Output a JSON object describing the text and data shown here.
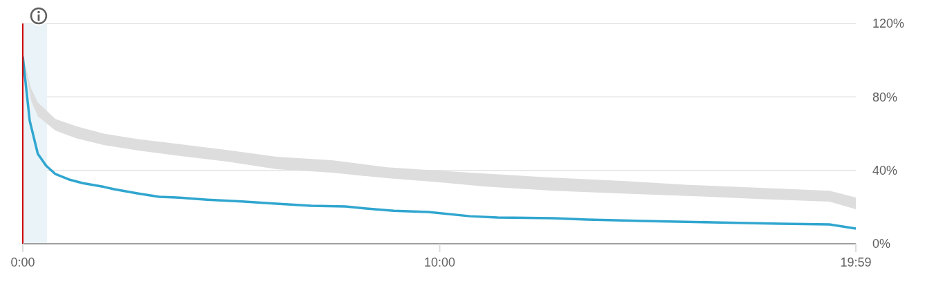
{
  "chart_data": {
    "type": "line",
    "xlim": [
      0,
      19.983
    ],
    "xticks": [
      {
        "value": 0,
        "label": "0:00"
      },
      {
        "value": 10,
        "label": "10:00"
      },
      {
        "value": 19.983,
        "label": "19:59"
      }
    ],
    "ylim": [
      0,
      120
    ],
    "yticks": [
      {
        "value": 0,
        "label": "0%"
      },
      {
        "value": 40,
        "label": "40%"
      },
      {
        "value": 80,
        "label": "80%"
      },
      {
        "value": 120,
        "label": "120%"
      }
    ],
    "grid": "y",
    "series": [
      {
        "type": "area",
        "color": "#dddddd",
        "x": [
          0,
          0.2,
          0.36,
          0.78,
          1.28,
          1.94,
          2.77,
          3.93,
          4.93,
          6.09,
          7.41,
          8.74,
          10,
          11.06,
          12.72,
          14.38,
          16.04,
          17.69,
          19.35,
          19.983
        ],
        "values": [
          null,
          null,
          null,
          null,
          null,
          null,
          null,
          null,
          null,
          null,
          null,
          null,
          null,
          null,
          null,
          null,
          null,
          null,
          null,
          null
        ],
        "lower": [
          102,
          78,
          69.5,
          61.7,
          57.5,
          53.8,
          50.8,
          47.4,
          44.7,
          40.6,
          38.7,
          35.7,
          33.5,
          31.2,
          28.9,
          27.4,
          26,
          24.4,
          22.9,
          18.8
        ],
        "upper": [
          102,
          84.6,
          77,
          68,
          64,
          60,
          57,
          53.8,
          51,
          47.4,
          45.5,
          41.7,
          39.8,
          38.3,
          36,
          34.2,
          32,
          30.5,
          28.9,
          25.2
        ]
      },
      {
        "color": "#30a6cf",
        "x": [
          0,
          0.166,
          0.36,
          0.56,
          0.78,
          1.11,
          1.44,
          1.94,
          2.19,
          2.77,
          3.27,
          3.76,
          4.43,
          5.26,
          6.09,
          6.92,
          7.74,
          8.24,
          8.9,
          9.73,
          10.73,
          11.39,
          12.72,
          13.55,
          14.88,
          16.53,
          18.19,
          19.35,
          19.983
        ],
        "values": [
          102,
          67,
          49,
          42.5,
          38,
          35,
          33,
          31,
          29.7,
          27.4,
          25.6,
          25.1,
          24,
          23,
          21.8,
          20.7,
          20.3,
          19.2,
          18,
          17.3,
          15,
          14.3,
          13.9,
          13.2,
          12.4,
          11.7,
          10.9,
          10.5,
          8.3
        ]
      }
    ],
    "bands": [
      {
        "axis": "x",
        "from": 0,
        "to": 0.58,
        "color": "#eaf4f8"
      }
    ],
    "ref_lines": [
      {
        "axis": "x",
        "value": 0,
        "color": "#cc0000"
      }
    ]
  }
}
